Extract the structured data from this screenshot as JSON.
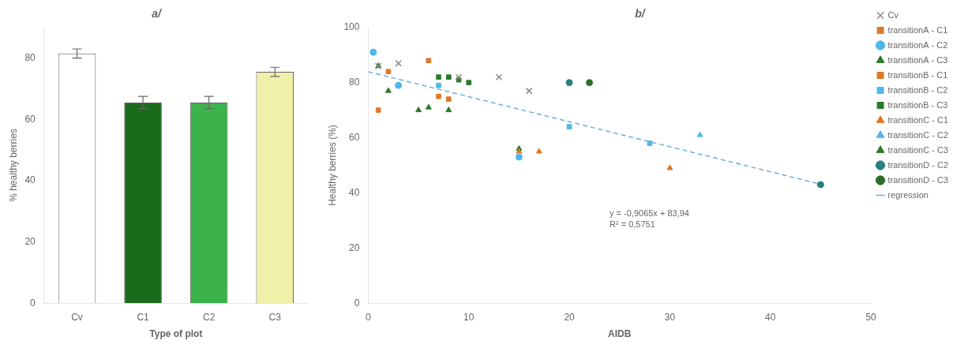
{
  "chart_data": [
    {
      "type": "bar",
      "title": "a/",
      "xlabel": "Type of plot",
      "ylabel": "% healthy berries",
      "categories": [
        "Cv",
        "C1",
        "C2",
        "C3"
      ],
      "values": [
        81.5,
        65.5,
        65.5,
        75.5
      ],
      "errors": [
        1.5,
        2.0,
        2.0,
        1.5
      ],
      "colors": [
        "#ffffff",
        "#1a6b1a",
        "#3cb34a",
        "#f0f0aa"
      ],
      "ylim": [
        0,
        90
      ],
      "yticks": [
        0,
        20,
        40,
        60,
        80
      ],
      "grid": false
    },
    {
      "type": "scatter",
      "title": "b/",
      "xlabel": "AIDB",
      "ylabel": "Healthy berries (%)",
      "xlim": [
        0,
        50
      ],
      "ylim": [
        0,
        100
      ],
      "xticks": [
        0,
        10,
        20,
        30,
        40,
        50
      ],
      "yticks": [
        0,
        20,
        40,
        60,
        80,
        100
      ],
      "grid": false,
      "legend": "right",
      "annotation": "y = -0,9065x + 83,94\nR² = 0,5751",
      "series": [
        {
          "name": "Cv",
          "color": "#888888",
          "marker": "cross",
          "x": [
            1,
            3,
            9,
            13,
            16
          ],
          "values": [
            86,
            87,
            82,
            82,
            77
          ]
        },
        {
          "name": "transitionA - C1",
          "color": "#e07828",
          "marker": "square",
          "x": [
            1,
            2,
            6
          ],
          "values": [
            70,
            84,
            88
          ]
        },
        {
          "name": "transitionA - C2",
          "color": "#4db8e8",
          "marker": "circle",
          "x": [
            0.5,
            3,
            15
          ],
          "values": [
            91,
            79,
            53
          ]
        },
        {
          "name": "transitionA - C3",
          "color": "#2a7a2a",
          "marker": "triangle",
          "x": [
            1,
            2,
            5,
            6
          ],
          "values": [
            86,
            77,
            70,
            71
          ]
        },
        {
          "name": "transitionB - C1",
          "color": "#e07828",
          "marker": "square",
          "x": [
            7,
            8
          ],
          "values": [
            75,
            74
          ]
        },
        {
          "name": "transitionB - C2",
          "color": "#4db8e8",
          "marker": "square",
          "x": [
            7,
            15,
            20,
            28
          ],
          "values": [
            79,
            53,
            64,
            58
          ]
        },
        {
          "name": "transitionB - C3",
          "color": "#2a7a2a",
          "marker": "square",
          "x": [
            7,
            8,
            9,
            10
          ],
          "values": [
            82,
            82,
            81,
            80
          ]
        },
        {
          "name": "transitionC - C1",
          "color": "#e07828",
          "marker": "triangle",
          "x": [
            15,
            17,
            30
          ],
          "values": [
            55,
            55,
            49
          ]
        },
        {
          "name": "transitionC - C2",
          "color": "#4db8e8",
          "marker": "triangle",
          "x": [
            33
          ],
          "values": [
            61
          ]
        },
        {
          "name": "transitionC - C3",
          "color": "#2a7a2a",
          "marker": "triangle",
          "x": [
            8,
            15
          ],
          "values": [
            70,
            56
          ]
        },
        {
          "name": "transitionD - C2",
          "color": "#2a8080",
          "marker": "circle",
          "x": [
            20,
            45
          ],
          "values": [
            80,
            43
          ]
        },
        {
          "name": "transitionD - C3",
          "color": "#2a6e2a",
          "marker": "circle",
          "x": [
            22
          ],
          "values": [
            80
          ]
        },
        {
          "name": "regression",
          "type": "line",
          "line_style": "dashed",
          "color": "#6ab0d8",
          "x": [
            0,
            45
          ],
          "values": [
            83.94,
            43.1475
          ]
        }
      ]
    }
  ]
}
